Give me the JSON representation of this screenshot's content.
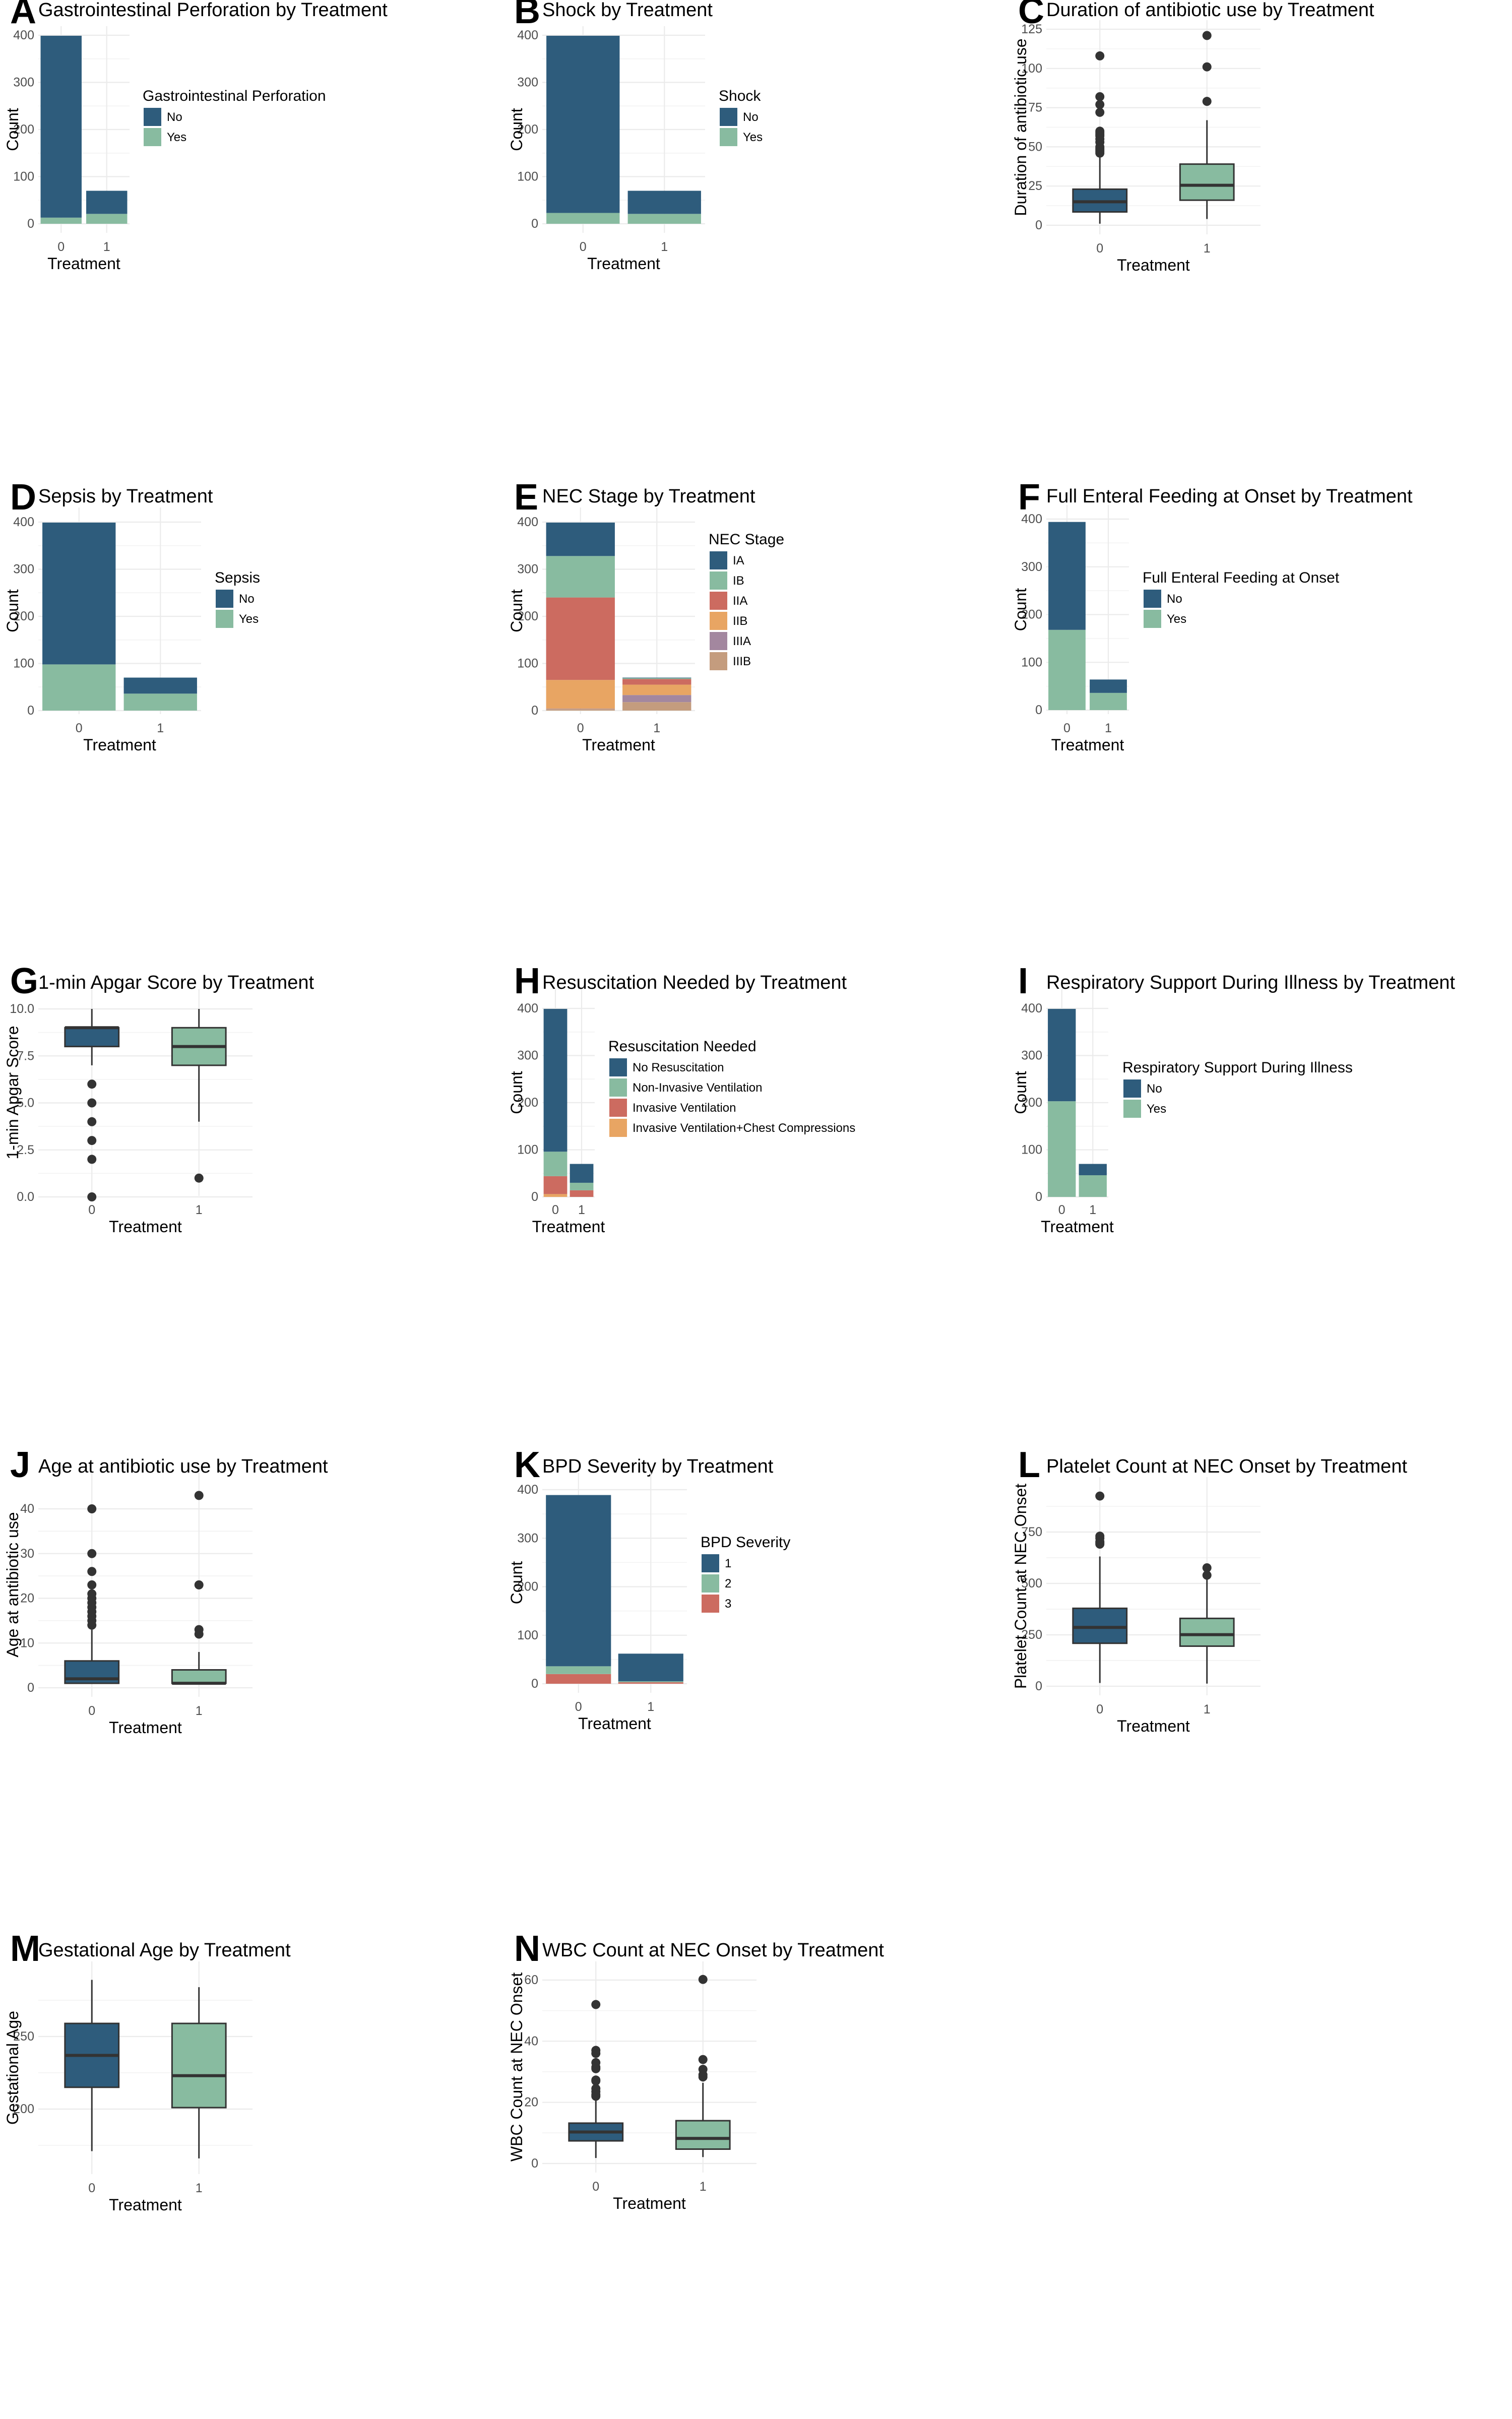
{
  "palette": {
    "No": "#2E5C7C",
    "Yes": "#88BBA0",
    "IA": "#2E5C7C",
    "IB": "#88BBA0",
    "IIA": "#CC6B60",
    "IIB": "#E8A563",
    "IIIA": "#A3879F",
    "IIIB": "#C49C7E",
    "No Resuscitation": "#2E5C7C",
    "Non-Invasive Ventilation": "#88BBA0",
    "Invasive Ventilation": "#CC6B60",
    "Invasive Ventilation+Chest Compressions": "#E8A563",
    "1": "#2E5C7C",
    "2": "#88BBA0",
    "3": "#CC6B60",
    "box_group_0": "#2E5C7C",
    "box_group_1": "#88BBA0",
    "box_outline": "#333333",
    "outlier": "#333333"
  },
  "chart_data": [
    {
      "id": "A",
      "letter": "A",
      "type": "bar",
      "stacked": true,
      "title": "Gastrointestinal Perforation by Treatment",
      "xlabel": "Treatment",
      "ylabel": "Count",
      "categories": [
        "0",
        "1"
      ],
      "ylim": [
        0,
        400
      ],
      "yticks": [
        0,
        100,
        200,
        300,
        400
      ],
      "legend_title": "Gastrointestinal Perforation",
      "legend_position": "right",
      "series": [
        {
          "name": "No",
          "values": [
            386,
            49
          ]
        },
        {
          "name": "Yes",
          "values": [
            13,
            21
          ]
        }
      ]
    },
    {
      "id": "B",
      "letter": "B",
      "type": "bar",
      "stacked": true,
      "title": "Shock by Treatment",
      "xlabel": "Treatment",
      "ylabel": "Count",
      "categories": [
        "0",
        "1"
      ],
      "ylim": [
        0,
        400
      ],
      "yticks": [
        0,
        100,
        200,
        300,
        400
      ],
      "legend_title": "Shock",
      "legend_position": "right",
      "series": [
        {
          "name": "No",
          "values": [
            376,
            49
          ]
        },
        {
          "name": "Yes",
          "values": [
            23,
            21
          ]
        }
      ]
    },
    {
      "id": "C",
      "letter": "C",
      "type": "box",
      "title": "Duration of antibiotic use by Treatment",
      "xlabel": "Treatment",
      "ylabel": "Duration of antibiotic use",
      "categories": [
        "0",
        "1"
      ],
      "ylim": [
        0,
        125
      ],
      "yticks": [
        0,
        25,
        50,
        75,
        100,
        125
      ],
      "boxes": [
        {
          "group": "0",
          "min": 1,
          "q1": 8.5,
          "median": 15,
          "q3": 23,
          "max": 44,
          "outliers": [
            46,
            47,
            48,
            49,
            50,
            53,
            55,
            57,
            58,
            59,
            60,
            72,
            77,
            82,
            108
          ]
        },
        {
          "group": "1",
          "min": 4,
          "q1": 16,
          "median": 25.5,
          "q3": 39,
          "max": 67,
          "outliers": [
            79,
            101,
            121
          ]
        }
      ]
    },
    {
      "id": "D",
      "letter": "D",
      "type": "bar",
      "stacked": true,
      "title": "Sepsis by Treatment",
      "xlabel": "Treatment",
      "ylabel": "Count",
      "categories": [
        "0",
        "1"
      ],
      "ylim": [
        0,
        400
      ],
      "yticks": [
        0,
        100,
        200,
        300,
        400
      ],
      "legend_title": "Sepsis",
      "legend_position": "right",
      "series": [
        {
          "name": "No",
          "values": [
            301,
            34
          ]
        },
        {
          "name": "Yes",
          "values": [
            98,
            36
          ]
        }
      ]
    },
    {
      "id": "E",
      "letter": "E",
      "type": "bar",
      "stacked": true,
      "title": "NEC Stage by Treatment",
      "xlabel": "Treatment",
      "ylabel": "Count",
      "categories": [
        "0",
        "1"
      ],
      "ylim": [
        0,
        400
      ],
      "yticks": [
        0,
        100,
        200,
        300,
        400
      ],
      "legend_title": "NEC Stage",
      "legend_position": "right",
      "series": [
        {
          "name": "IA",
          "values": [
            71,
            1
          ]
        },
        {
          "name": "IB",
          "values": [
            88,
            2
          ]
        },
        {
          "name": "IIA",
          "values": [
            175,
            12
          ]
        },
        {
          "name": "IIB",
          "values": [
            61,
            22
          ]
        },
        {
          "name": "IIIA",
          "values": [
            1,
            15
          ]
        },
        {
          "name": "IIIB",
          "values": [
            3,
            18
          ]
        }
      ]
    },
    {
      "id": "F",
      "letter": "F",
      "type": "bar",
      "stacked": true,
      "title": "Full Enteral Feeding at Onset by Treatment",
      "xlabel": "Treatment",
      "ylabel": "Count",
      "categories": [
        "0",
        "1"
      ],
      "ylim": [
        0,
        400
      ],
      "yticks": [
        0,
        100,
        200,
        300,
        400
      ],
      "legend_title": "Full Enteral Feeding at Onset",
      "legend_position": "right",
      "series": [
        {
          "name": "No",
          "values": [
            226,
            28
          ]
        },
        {
          "name": "Yes",
          "values": [
            168,
            36
          ]
        }
      ]
    },
    {
      "id": "G",
      "letter": "G",
      "type": "box",
      "title": "1-min Apgar Score by Treatment",
      "xlabel": "Treatment",
      "ylabel": "1-min Apgar Score",
      "categories": [
        "0",
        "1"
      ],
      "ylim": [
        0,
        10
      ],
      "yticks": [
        0.0,
        2.5,
        5.0,
        7.5,
        10.0
      ],
      "ytick_labels": [
        "0.0",
        "2.5",
        "5.0",
        "7.5",
        "10.0"
      ],
      "boxes": [
        {
          "group": "0",
          "min": 7,
          "q1": 8,
          "median": 9,
          "q3": 9,
          "max": 10,
          "outliers": [
            0,
            2,
            3,
            4,
            5,
            6
          ]
        },
        {
          "group": "1",
          "min": 4,
          "q1": 7,
          "median": 8,
          "q3": 9,
          "max": 10,
          "outliers": [
            1
          ]
        }
      ]
    },
    {
      "id": "H",
      "letter": "H",
      "type": "bar",
      "stacked": true,
      "title": "Resuscitation Needed by Treatment",
      "xlabel": "Treatment",
      "ylabel": "Count",
      "categories": [
        "0",
        "1"
      ],
      "ylim": [
        0,
        400
      ],
      "yticks": [
        0,
        100,
        200,
        300,
        400
      ],
      "legend_title": "Resuscitation Needed",
      "legend_position": "right",
      "series": [
        {
          "name": "No Resuscitation",
          "values": [
            303,
            40
          ]
        },
        {
          "name": "Non-Invasive Ventilation",
          "values": [
            52,
            16
          ]
        },
        {
          "name": "Invasive Ventilation",
          "values": [
            38,
            14
          ]
        },
        {
          "name": "Invasive Ventilation+Chest Compressions",
          "values": [
            6,
            0
          ]
        }
      ]
    },
    {
      "id": "I",
      "letter": "I",
      "type": "bar",
      "stacked": true,
      "title": "Respiratory Support During Illness by Treatment",
      "xlabel": "Treatment",
      "ylabel": "Count",
      "categories": [
        "0",
        "1"
      ],
      "ylim": [
        0,
        400
      ],
      "yticks": [
        0,
        100,
        200,
        300,
        400
      ],
      "legend_title": "Respiratory Support During Illness",
      "legend_position": "right",
      "series": [
        {
          "name": "No",
          "values": [
            196,
            24
          ]
        },
        {
          "name": "Yes",
          "values": [
            203,
            46
          ]
        }
      ]
    },
    {
      "id": "J",
      "letter": "J",
      "type": "box",
      "title": "Age at antibiotic use by Treatment",
      "xlabel": "Treatment",
      "ylabel": "Age at antibiotic use",
      "categories": [
        "0",
        "1"
      ],
      "ylim": [
        0,
        43
      ],
      "yticks": [
        0,
        10,
        20,
        30,
        40
      ],
      "boxes": [
        {
          "group": "0",
          "min": 1,
          "q1": 1,
          "median": 2,
          "q3": 6,
          "max": 13,
          "outliers": [
            14,
            15,
            16,
            17,
            18,
            19,
            20,
            21,
            23,
            26,
            30,
            40
          ]
        },
        {
          "group": "1",
          "min": 1,
          "q1": 1,
          "median": 1,
          "q3": 4,
          "max": 8,
          "outliers": [
            12,
            13,
            23,
            43
          ]
        }
      ]
    },
    {
      "id": "K",
      "letter": "K",
      "type": "bar",
      "stacked": true,
      "title": "BPD Severity by Treatment",
      "xlabel": "Treatment",
      "ylabel": "Count",
      "categories": [
        "0",
        "1"
      ],
      "ylim": [
        0,
        400
      ],
      "yticks": [
        0,
        100,
        200,
        300,
        400
      ],
      "legend_title": "BPD Severity",
      "legend_position": "right",
      "series": [
        {
          "name": "1",
          "values": [
            353,
            57
          ]
        },
        {
          "name": "2",
          "values": [
            16,
            2
          ]
        },
        {
          "name": "3",
          "values": [
            20,
            3
          ]
        }
      ]
    },
    {
      "id": "L",
      "letter": "L",
      "type": "box",
      "title": "Platelet Count at NEC Onset by Treatment",
      "xlabel": "Treatment",
      "ylabel": "Platelet Count at NEC Onset",
      "categories": [
        "0",
        "1"
      ],
      "ylim": [
        0,
        925
      ],
      "yticks": [
        0,
        250,
        500,
        750
      ],
      "boxes": [
        {
          "group": "0",
          "min": 16,
          "q1": 209,
          "median": 286,
          "q3": 379,
          "max": 631,
          "outliers": [
            691,
            697,
            703,
            720,
            730,
            925
          ]
        },
        {
          "group": "1",
          "min": 13,
          "q1": 195,
          "median": 251,
          "q3": 330,
          "max": 538,
          "outliers": [
            540,
            576
          ]
        }
      ]
    },
    {
      "id": "M",
      "letter": "M",
      "type": "box",
      "title": "Gestational Age by Treatment",
      "xlabel": "Treatment",
      "ylabel": "Gestational Age",
      "categories": [
        "0",
        "1"
      ],
      "ylim": [
        166,
        289
      ],
      "yticks": [
        200,
        250
      ],
      "boxes": [
        {
          "group": "0",
          "min": 171,
          "q1": 215,
          "median": 237,
          "q3": 259,
          "max": 289,
          "outliers": []
        },
        {
          "group": "1",
          "min": 166,
          "q1": 201,
          "median": 223,
          "q3": 259,
          "max": 284,
          "outliers": []
        }
      ]
    },
    {
      "id": "N",
      "letter": "N",
      "type": "box",
      "title": "WBC Count at NEC Onset by Treatment",
      "xlabel": "Treatment",
      "ylabel": "WBC Count at NEC Onset",
      "categories": [
        "0",
        "1"
      ],
      "ylim": [
        0,
        60
      ],
      "yticks": [
        0,
        20,
        40,
        60
      ],
      "boxes": [
        {
          "group": "0",
          "min": 1.8,
          "q1": 7.4,
          "median": 10.3,
          "q3": 13.2,
          "max": 21.4,
          "outliers": [
            22,
            22.5,
            23.5,
            24.5,
            27,
            27.3,
            31,
            31.5,
            33,
            36,
            37,
            52
          ]
        },
        {
          "group": "1",
          "min": 2.1,
          "q1": 4.7,
          "median": 8.2,
          "q3": 14,
          "max": 26.4,
          "outliers": [
            28.3,
            29,
            30.8,
            34,
            60.2
          ]
        }
      ]
    }
  ]
}
